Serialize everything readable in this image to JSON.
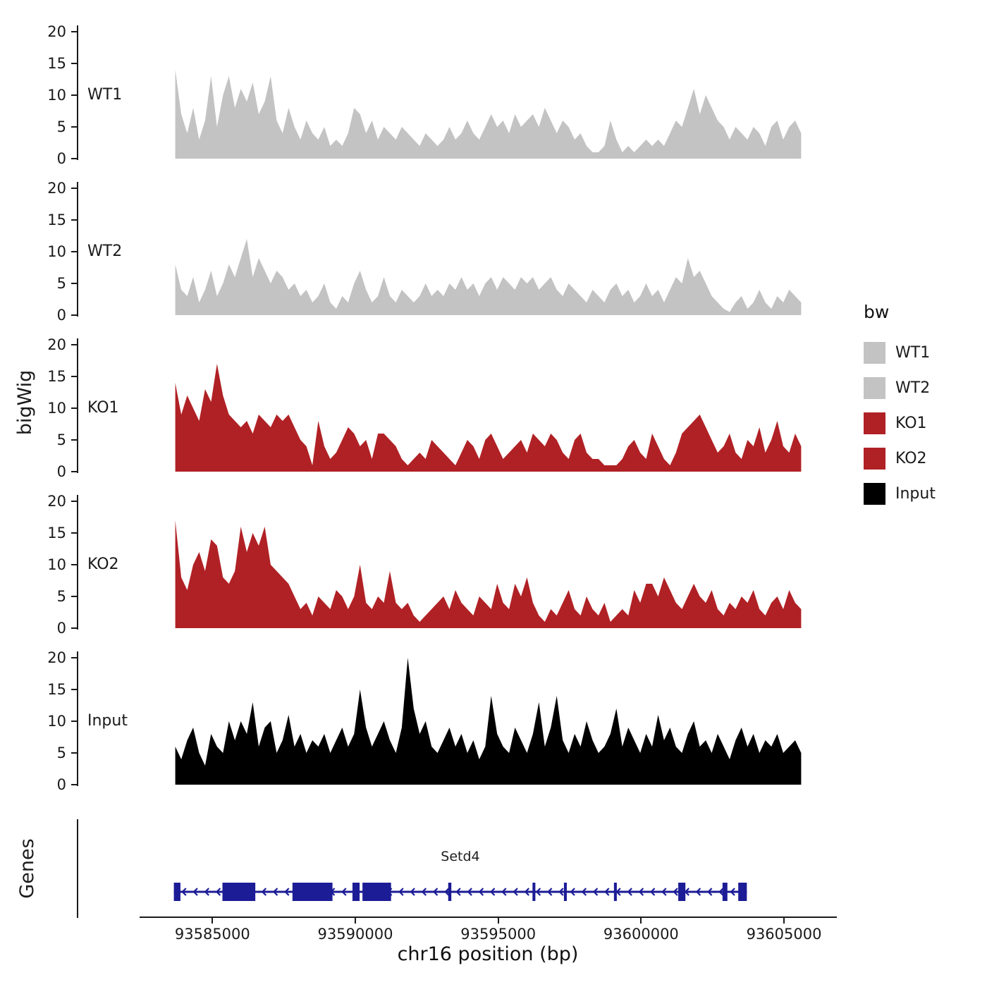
{
  "chart_data": {
    "type": "area",
    "title": "",
    "xlabel": "chr16 position (bp)",
    "ylabel": "bigWig",
    "genes_panel_label": "Genes",
    "x_domain": [
      93582500,
      93606800
    ],
    "x_ticks": [
      93585000,
      93590000,
      93595000,
      93600000,
      93605000
    ],
    "x_tick_labels": [
      "93585000",
      "93590000",
      "93595000",
      "93600000",
      "93605000"
    ],
    "y_ticks": [
      0,
      5,
      10,
      15,
      20
    ],
    "ylim": [
      0,
      21
    ],
    "grid": false,
    "legend_position": "right",
    "legend": {
      "title": "bw",
      "entries": [
        {
          "label": "WT1",
          "color": "#c3c3c3"
        },
        {
          "label": "WT2",
          "color": "#c3c3c3"
        },
        {
          "label": "KO1",
          "color": "#b02125"
        },
        {
          "label": "KO2",
          "color": "#b02125"
        },
        {
          "label": "Input",
          "color": "#000000"
        }
      ]
    },
    "series": [
      {
        "name": "WT1",
        "color": "#c3c3c3",
        "start": 93583700,
        "end": 93605600,
        "values": [
          14,
          7,
          4,
          8,
          3,
          6,
          13,
          5,
          10,
          13,
          8,
          11,
          9,
          12,
          7,
          9,
          13,
          6,
          4,
          8,
          5,
          3,
          6,
          4,
          3,
          5,
          2,
          3,
          2,
          4,
          8,
          7,
          4,
          6,
          3,
          5,
          4,
          3,
          5,
          4,
          3,
          2,
          4,
          3,
          2,
          3,
          5,
          3,
          4,
          6,
          4,
          3,
          5,
          7,
          5,
          6,
          4,
          7,
          5,
          6,
          7,
          5,
          8,
          6,
          4,
          6,
          5,
          3,
          4,
          2,
          1,
          1,
          2,
          6,
          3,
          1,
          2,
          1,
          2,
          3,
          2,
          3,
          2,
          4,
          6,
          5,
          8,
          11,
          7,
          10,
          8,
          6,
          5,
          3,
          5,
          4,
          3,
          5,
          4,
          2,
          5,
          6,
          3,
          5,
          6,
          4
        ]
      },
      {
        "name": "WT2",
        "color": "#c3c3c3",
        "start": 93583700,
        "end": 93605600,
        "values": [
          8,
          4,
          3,
          6,
          2,
          4,
          7,
          3,
          5,
          8,
          6,
          9,
          12,
          6,
          9,
          7,
          5,
          7,
          6,
          4,
          5,
          3,
          4,
          2,
          3,
          5,
          2,
          1,
          3,
          2,
          5,
          7,
          4,
          2,
          3,
          6,
          3,
          2,
          4,
          3,
          2,
          3,
          5,
          3,
          4,
          3,
          5,
          4,
          6,
          4,
          5,
          3,
          5,
          6,
          4,
          6,
          5,
          4,
          6,
          5,
          6,
          4,
          5,
          6,
          4,
          3,
          5,
          4,
          3,
          2,
          4,
          3,
          2,
          4,
          5,
          3,
          4,
          2,
          3,
          5,
          3,
          4,
          2,
          4,
          6,
          5,
          9,
          6,
          7,
          5,
          3,
          2,
          1,
          0.5,
          2,
          3,
          1,
          2,
          4,
          2,
          1,
          3,
          2,
          4,
          3,
          2
        ]
      },
      {
        "name": "KO1",
        "color": "#b02125",
        "start": 93583700,
        "end": 93605600,
        "values": [
          14,
          9,
          12,
          10,
          8,
          13,
          11,
          17,
          12,
          9,
          8,
          7,
          8,
          6,
          9,
          8,
          7,
          9,
          8,
          9,
          7,
          5,
          4,
          1,
          8,
          4,
          2,
          3,
          5,
          7,
          6,
          4,
          5,
          2,
          6,
          6,
          5,
          4,
          2,
          1,
          2,
          3,
          2,
          5,
          4,
          3,
          2,
          1,
          3,
          5,
          4,
          2,
          5,
          6,
          4,
          2,
          3,
          4,
          5,
          3,
          6,
          5,
          4,
          6,
          5,
          3,
          2,
          5,
          6,
          3,
          2,
          2,
          1,
          1,
          1,
          2,
          4,
          5,
          3,
          2,
          6,
          4,
          2,
          1,
          3,
          6,
          7,
          8,
          9,
          7,
          5,
          3,
          4,
          6,
          3,
          2,
          5,
          4,
          7,
          3,
          5,
          8,
          4,
          3,
          6,
          4
        ]
      },
      {
        "name": "KO2",
        "color": "#b02125",
        "start": 93583700,
        "end": 93605600,
        "values": [
          17,
          8,
          6,
          10,
          12,
          9,
          14,
          13,
          8,
          7,
          9,
          16,
          12,
          15,
          13,
          16,
          10,
          9,
          8,
          7,
          5,
          3,
          4,
          2,
          5,
          4,
          3,
          6,
          5,
          3,
          5,
          10,
          4,
          3,
          5,
          4,
          9,
          4,
          3,
          4,
          2,
          1,
          2,
          3,
          4,
          5,
          3,
          6,
          4,
          3,
          2,
          5,
          4,
          3,
          7,
          4,
          3,
          7,
          5,
          8,
          4,
          2,
          1,
          3,
          2,
          4,
          6,
          3,
          2,
          5,
          3,
          2,
          4,
          1,
          2,
          3,
          2,
          6,
          4,
          7,
          7,
          5,
          8,
          6,
          4,
          3,
          5,
          7,
          5,
          4,
          6,
          3,
          2,
          4,
          3,
          5,
          4,
          6,
          3,
          2,
          4,
          5,
          3,
          6,
          4,
          3
        ]
      },
      {
        "name": "Input",
        "color": "#000000",
        "start": 93583700,
        "end": 93605600,
        "values": [
          6,
          4,
          7,
          9,
          5,
          3,
          8,
          6,
          5,
          10,
          7,
          10,
          8,
          13,
          6,
          9,
          10,
          5,
          7,
          11,
          6,
          8,
          5,
          7,
          6,
          8,
          5,
          7,
          9,
          6,
          8,
          15,
          9,
          6,
          8,
          10,
          7,
          5,
          9,
          20,
          12,
          8,
          10,
          6,
          5,
          7,
          9,
          6,
          8,
          5,
          7,
          4,
          6,
          14,
          8,
          6,
          5,
          9,
          7,
          5,
          8,
          13,
          6,
          9,
          14,
          7,
          5,
          8,
          6,
          10,
          7,
          5,
          6,
          8,
          12,
          6,
          9,
          7,
          5,
          8,
          6,
          11,
          7,
          9,
          6,
          5,
          8,
          10,
          6,
          7,
          5,
          8,
          6,
          4,
          7,
          9,
          6,
          8,
          5,
          7,
          6,
          8,
          5,
          6,
          7,
          5
        ]
      }
    ],
    "gene_track": {
      "gene_name": "Setd4",
      "strand": "-",
      "color": "#1c1c96",
      "start": 93583650,
      "end": 93603700,
      "exons": [
        [
          93583650,
          93583880
        ],
        [
          93585350,
          93586500
        ],
        [
          93587800,
          93589200
        ],
        [
          93589900,
          93590150
        ],
        [
          93590250,
          93591250
        ],
        [
          93593250,
          93593360
        ],
        [
          93596200,
          93596300
        ],
        [
          93597300,
          93597400
        ],
        [
          93599050,
          93599150
        ],
        [
          93601300,
          93601550
        ],
        [
          93602850,
          93603020
        ],
        [
          93603400,
          93603700
        ]
      ]
    }
  }
}
